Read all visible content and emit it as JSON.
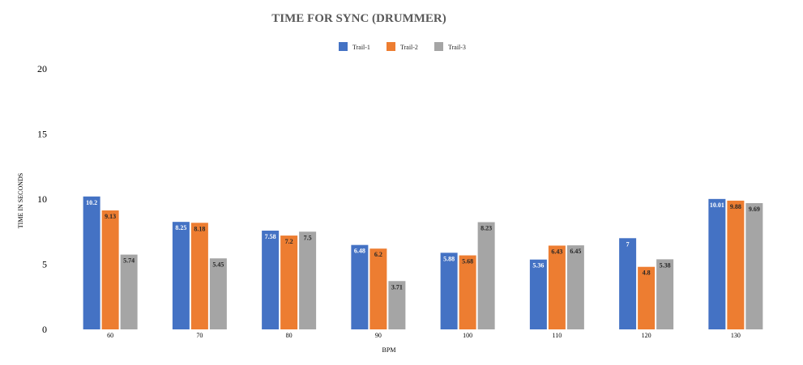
{
  "chart_data": {
    "type": "bar",
    "title": "TIME FOR SYNC (DRUMMER)",
    "xlabel": "BPM",
    "ylabel": "TIME IN SECONDS",
    "categories": [
      "60",
      "70",
      "80",
      "90",
      "100",
      "110",
      "120",
      "130"
    ],
    "series": [
      {
        "name": "Trail-1",
        "color": "#4472c4",
        "values": [
          10.2,
          8.25,
          7.58,
          6.48,
          5.88,
          5.36,
          7,
          10.01
        ]
      },
      {
        "name": "Trail-2",
        "color": "#ed7d31",
        "values": [
          9.13,
          8.18,
          7.2,
          6.2,
          5.68,
          6.43,
          4.8,
          9.88
        ]
      },
      {
        "name": "Trail-3",
        "color": "#a5a5a5",
        "values": [
          5.74,
          5.45,
          7.5,
          3.71,
          8.23,
          6.45,
          5.38,
          9.69
        ]
      }
    ],
    "ylim": [
      0,
      20
    ],
    "yticks": [
      0,
      5,
      10,
      15,
      20
    ],
    "grid": false,
    "legend_position": "top",
    "data_labels": true
  }
}
